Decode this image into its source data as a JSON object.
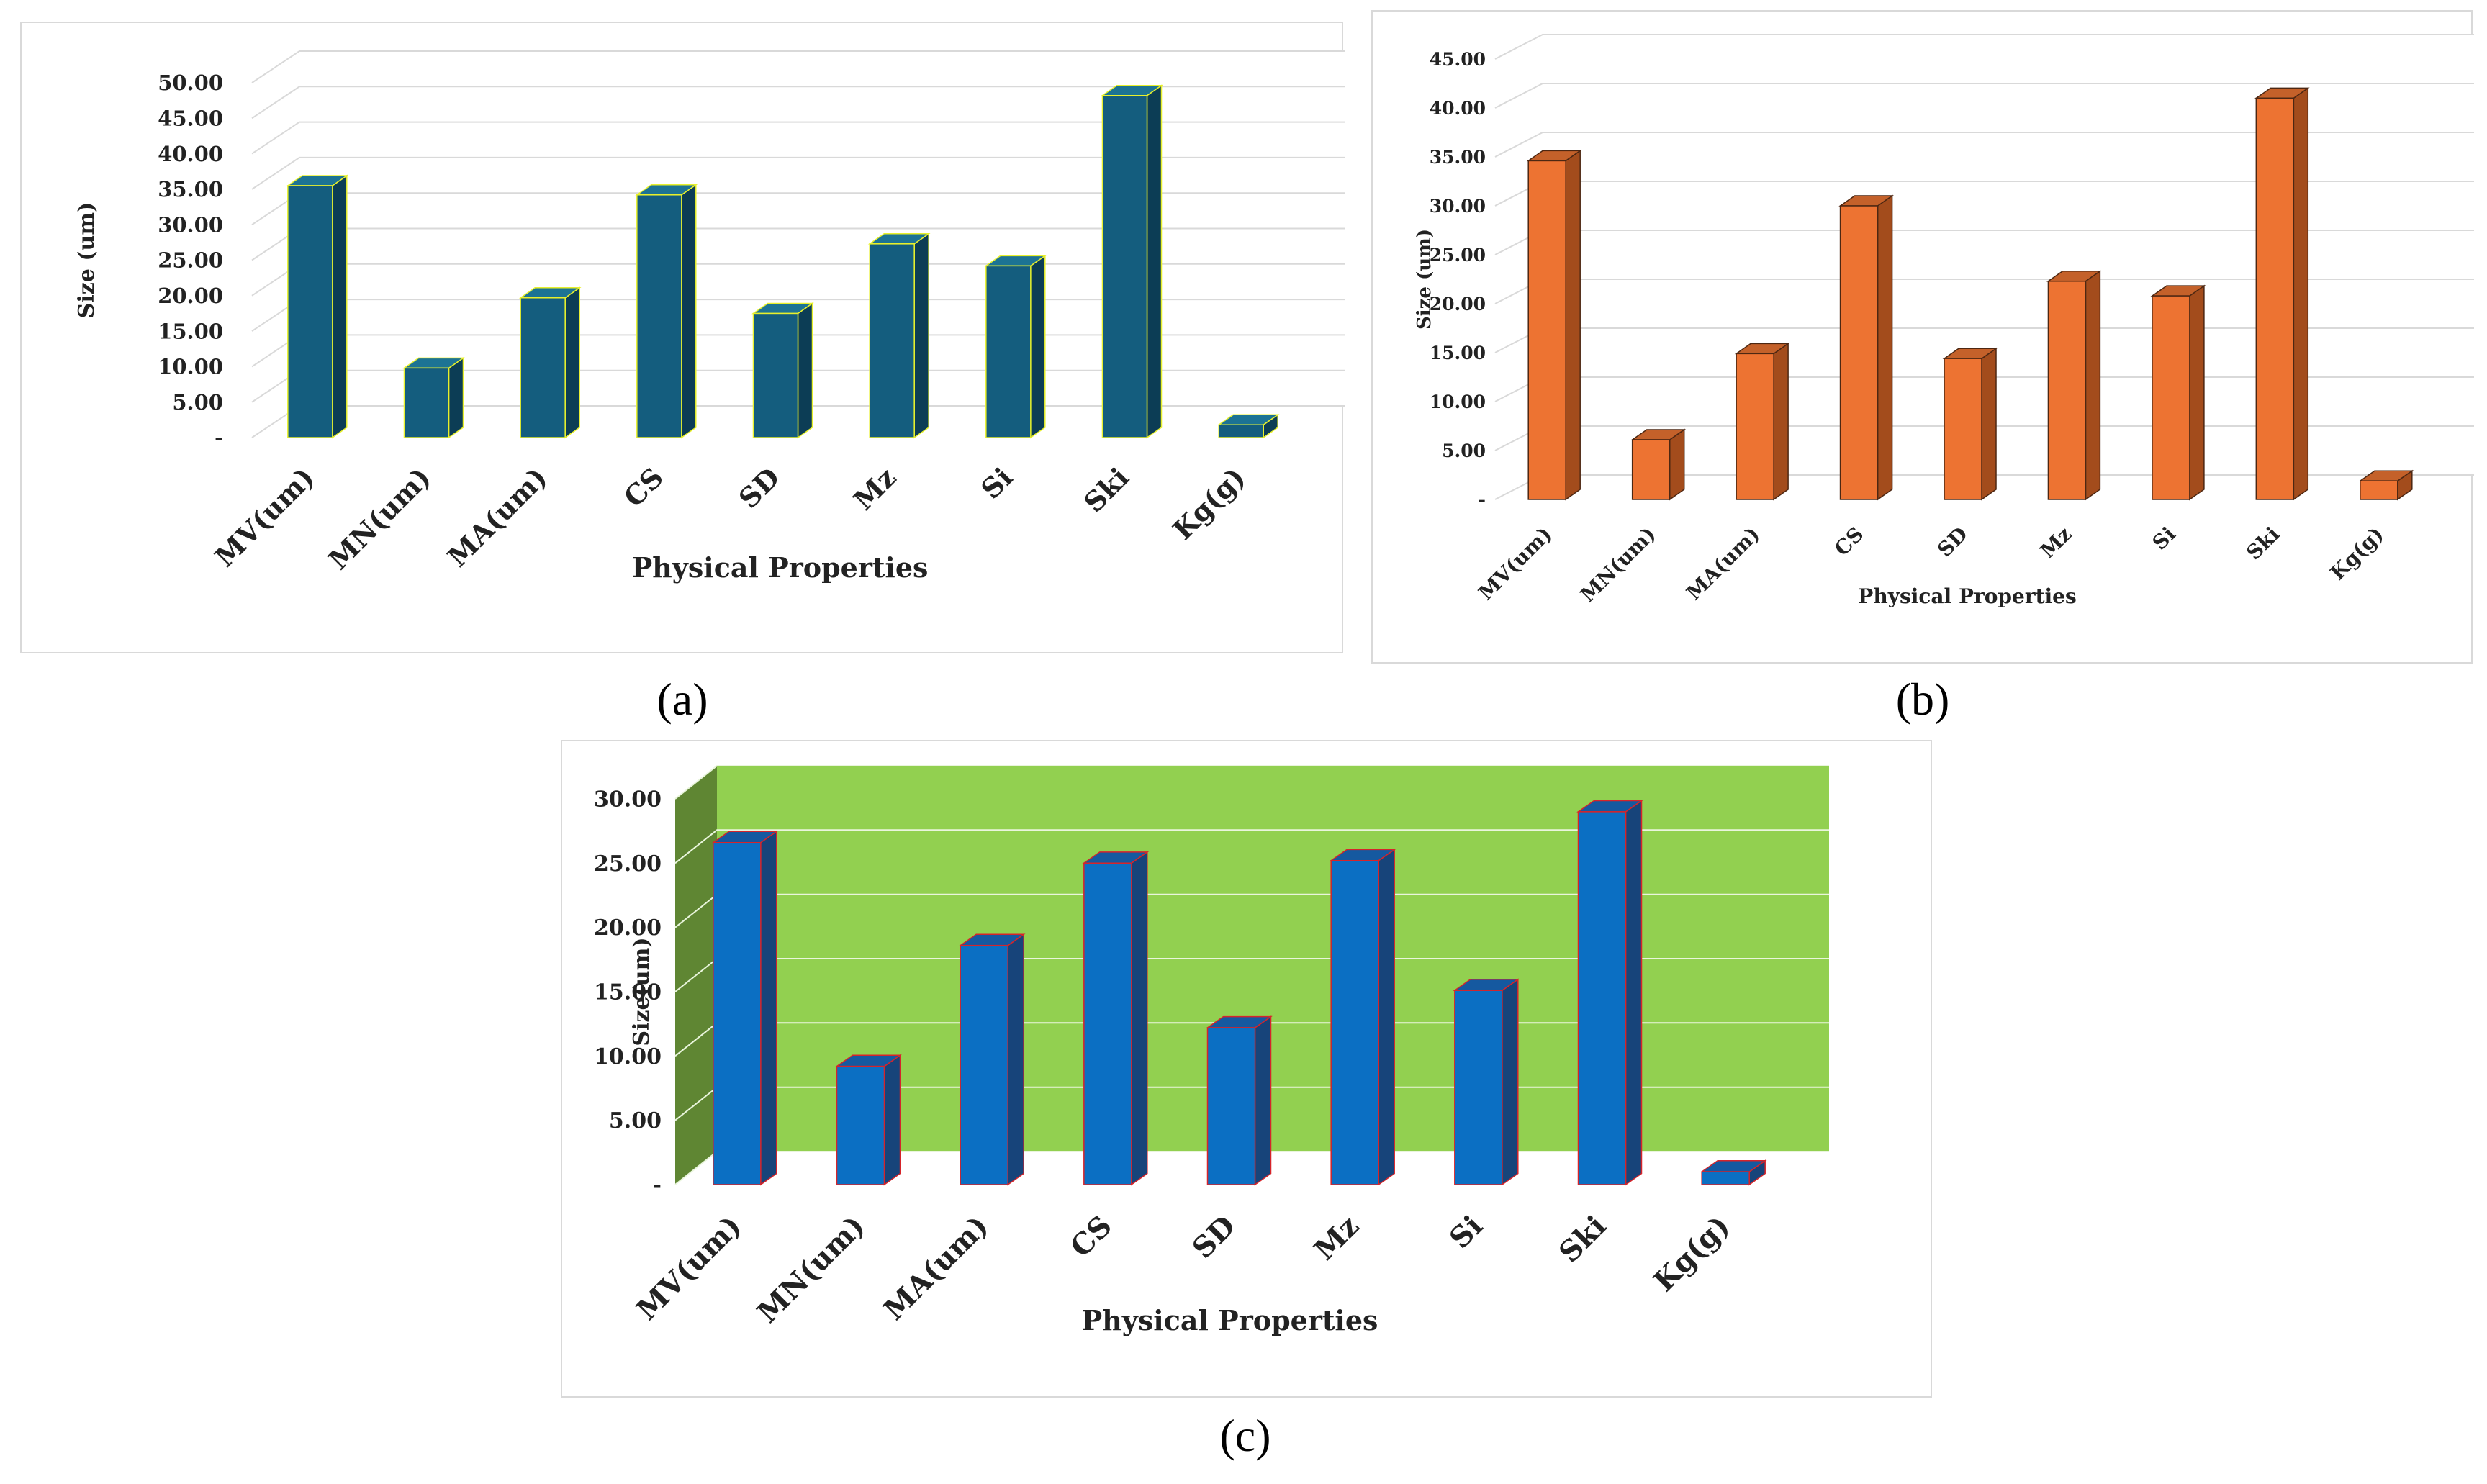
{
  "chart_data": [
    {
      "type": "bar",
      "panel_label": "(a)",
      "categories": [
        "MV(um)",
        "MN(um)",
        "MA(um)",
        "CS",
        "SD",
        "Mz",
        "Si",
        "Ski",
        "Kg(g)"
      ],
      "values": [
        35.5,
        9.8,
        19.7,
        34.2,
        17.5,
        27.3,
        24.2,
        48.2,
        1.8
      ],
      "title": "",
      "xlabel": "Physical Properties",
      "ylabel": "Size (um)",
      "ylim": [
        0,
        50
      ],
      "yticks": [
        "-",
        "5.00",
        "10.00",
        "15.00",
        "20.00",
        "25.00",
        "30.00",
        "35.00",
        "40.00",
        "45.00",
        "50.00"
      ],
      "grid": true,
      "colors": {
        "front": "#145d7e",
        "side": "#0c3d55",
        "top": "#1c7394",
        "edge": "#e8f02c",
        "wall": "#ffffff",
        "grid": "#d9d9d9"
      }
    },
    {
      "type": "bar",
      "panel_label": "(b)",
      "categories": [
        "MV(um)",
        "MN(um)",
        "MA(um)",
        "CS",
        "SD",
        "Mz",
        "Si",
        "Ski",
        "Kg(g)"
      ],
      "values": [
        34.6,
        6.1,
        14.9,
        30.0,
        14.4,
        22.3,
        20.8,
        41.0,
        1.9
      ],
      "title": "",
      "xlabel": "Physical Properties",
      "ylabel": "Size (um)",
      "ylim": [
        0,
        45
      ],
      "yticks": [
        "-",
        "5.00",
        "10.00",
        "15.00",
        "20.00",
        "25.00",
        "30.00",
        "35.00",
        "40.00",
        "45.00"
      ],
      "grid": true,
      "colors": {
        "front": "#ed7332",
        "side": "#a34c1c",
        "top": "#c4612a",
        "edge": "#4d2712",
        "wall": "#ffffff",
        "grid": "#d9d9d9"
      }
    },
    {
      "type": "bar",
      "panel_label": "(c)",
      "categories": [
        "MV(um)",
        "MN(um)",
        "MA(um)",
        "CS",
        "SD",
        "Mz",
        "Si",
        "Ski",
        "Kg(g)"
      ],
      "values": [
        26.6,
        9.2,
        18.6,
        25.0,
        12.2,
        25.2,
        15.1,
        29.0,
        1.0
      ],
      "title": "",
      "xlabel": "Physical Properties",
      "ylabel": "Size(um)",
      "ylim": [
        0,
        30
      ],
      "yticks": [
        "-",
        "5.00",
        "10.00",
        "15.00",
        "20.00",
        "25.00",
        "30.00"
      ],
      "grid": true,
      "colors": {
        "front": "#0b6fc3",
        "side": "#17447a",
        "top": "#1559a0",
        "edge": "#d6242a",
        "wall": "#92d050",
        "sidewall": "#5f8633",
        "grid": "#e9f5dc"
      }
    }
  ]
}
